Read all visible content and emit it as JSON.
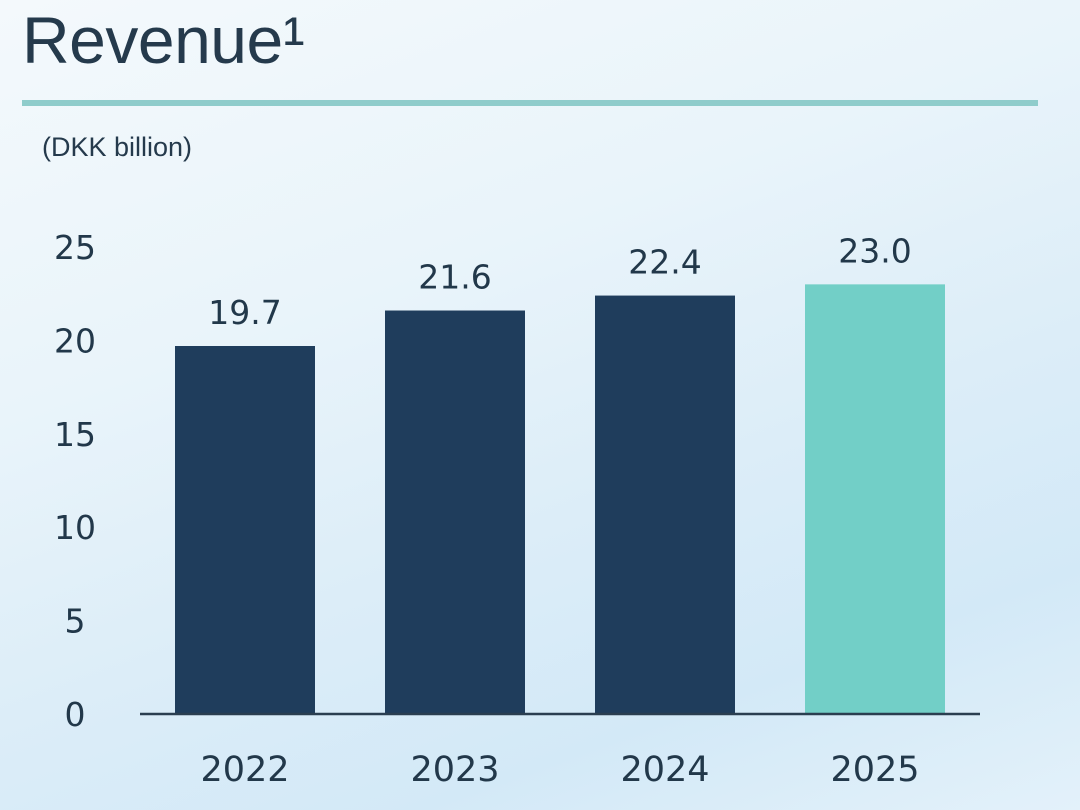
{
  "chart_data": {
    "type": "bar",
    "title": "Revenue¹",
    "ylabel": "(DKK billion)",
    "xlabel": "",
    "categories": [
      "2022",
      "2023",
      "2024",
      "2025"
    ],
    "values": [
      19.7,
      21.6,
      22.4,
      23.0
    ],
    "data_labels": [
      "19.7",
      "21.6",
      "22.4",
      "23.0"
    ],
    "yticks": [
      "0",
      "5",
      "10",
      "15",
      "20",
      "25"
    ],
    "ylim": [
      0,
      25
    ],
    "grid": false,
    "colors": {
      "bar": "#1f3d5c",
      "highlight_bar": "#72cfc7",
      "rule": "#8fcccb"
    },
    "highlight_category": "2025"
  }
}
